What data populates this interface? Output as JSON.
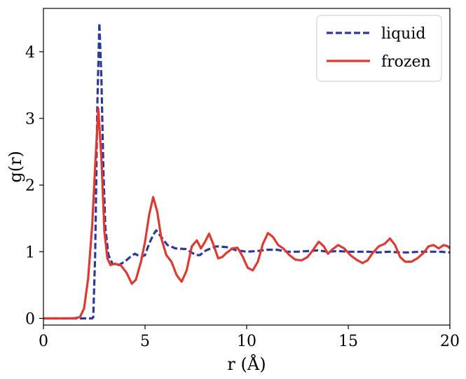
{
  "chart_data": {
    "type": "line",
    "xlabel": "r (Å)",
    "ylabel": "g(r)",
    "xlim": [
      0,
      20
    ],
    "ylim": [
      -0.1,
      4.65
    ],
    "xticks": [
      0,
      5,
      10,
      15,
      20
    ],
    "yticks": [
      0,
      1,
      2,
      3,
      4
    ],
    "grid": false,
    "legend_position": "top-right",
    "series": [
      {
        "name": "liquid",
        "color": "#2b3a9c",
        "style": "dashed",
        "points": [
          [
            0,
            0
          ],
          [
            2.4,
            0
          ],
          [
            2.45,
            0.02
          ],
          [
            2.55,
            1.0
          ],
          [
            2.65,
            3.2
          ],
          [
            2.75,
            4.43
          ],
          [
            2.85,
            3.6
          ],
          [
            2.95,
            2.2
          ],
          [
            3.05,
            1.35
          ],
          [
            3.2,
            0.95
          ],
          [
            3.4,
            0.82
          ],
          [
            3.7,
            0.8
          ],
          [
            4.0,
            0.85
          ],
          [
            4.3,
            0.93
          ],
          [
            4.5,
            0.97
          ],
          [
            4.8,
            0.92
          ],
          [
            5.0,
            0.95
          ],
          [
            5.2,
            1.12
          ],
          [
            5.4,
            1.25
          ],
          [
            5.55,
            1.32
          ],
          [
            5.8,
            1.22
          ],
          [
            6.1,
            1.1
          ],
          [
            6.5,
            1.05
          ],
          [
            7.0,
            1.04
          ],
          [
            7.5,
            0.95
          ],
          [
            7.7,
            0.95
          ],
          [
            8.0,
            1.02
          ],
          [
            8.5,
            1.08
          ],
          [
            9.0,
            1.07
          ],
          [
            9.5,
            1.02
          ],
          [
            10.0,
            1.0
          ],
          [
            10.5,
            1.01
          ],
          [
            11.0,
            1.03
          ],
          [
            11.5,
            1.03
          ],
          [
            12.0,
            1.0
          ],
          [
            12.5,
            1.0
          ],
          [
            13.0,
            1.01
          ],
          [
            13.5,
            1.02
          ],
          [
            14.0,
            1.0
          ],
          [
            14.5,
            1.01
          ],
          [
            15.0,
            1.0
          ],
          [
            15.5,
            1.0
          ],
          [
            16.0,
            1.0
          ],
          [
            16.5,
            0.99
          ],
          [
            17.0,
            1.0
          ],
          [
            17.5,
            0.99
          ],
          [
            18.0,
            0.99
          ],
          [
            18.5,
            1.0
          ],
          [
            19.0,
            1.0
          ],
          [
            19.5,
            1.0
          ],
          [
            20.0,
            0.99
          ]
        ]
      },
      {
        "name": "frozen",
        "color": "#dd3a31",
        "style": "solid",
        "points": [
          [
            0,
            0
          ],
          [
            1.5,
            0
          ],
          [
            1.8,
            0.02
          ],
          [
            2.0,
            0.15
          ],
          [
            2.2,
            0.6
          ],
          [
            2.4,
            1.4
          ],
          [
            2.55,
            2.3
          ],
          [
            2.7,
            3.15
          ],
          [
            2.85,
            2.4
          ],
          [
            3.0,
            1.3
          ],
          [
            3.15,
            0.9
          ],
          [
            3.3,
            0.8
          ],
          [
            3.5,
            0.82
          ],
          [
            3.8,
            0.8
          ],
          [
            4.1,
            0.68
          ],
          [
            4.35,
            0.52
          ],
          [
            4.55,
            0.58
          ],
          [
            4.8,
            0.85
          ],
          [
            5.0,
            1.15
          ],
          [
            5.2,
            1.55
          ],
          [
            5.4,
            1.82
          ],
          [
            5.6,
            1.6
          ],
          [
            5.8,
            1.2
          ],
          [
            6.05,
            0.95
          ],
          [
            6.3,
            0.85
          ],
          [
            6.55,
            0.65
          ],
          [
            6.8,
            0.55
          ],
          [
            7.05,
            0.72
          ],
          [
            7.3,
            1.08
          ],
          [
            7.55,
            1.17
          ],
          [
            7.75,
            1.05
          ],
          [
            7.95,
            1.15
          ],
          [
            8.15,
            1.27
          ],
          [
            8.35,
            1.12
          ],
          [
            8.6,
            0.9
          ],
          [
            8.8,
            0.92
          ],
          [
            9.0,
            0.98
          ],
          [
            9.3,
            1.05
          ],
          [
            9.55,
            1.06
          ],
          [
            9.8,
            0.93
          ],
          [
            10.05,
            0.76
          ],
          [
            10.3,
            0.72
          ],
          [
            10.55,
            0.85
          ],
          [
            10.8,
            1.12
          ],
          [
            11.05,
            1.28
          ],
          [
            11.3,
            1.22
          ],
          [
            11.55,
            1.1
          ],
          [
            11.8,
            1.05
          ],
          [
            12.1,
            0.95
          ],
          [
            12.4,
            0.88
          ],
          [
            12.7,
            0.87
          ],
          [
            13.0,
            0.92
          ],
          [
            13.25,
            1.02
          ],
          [
            13.55,
            1.15
          ],
          [
            13.8,
            1.08
          ],
          [
            14.0,
            0.97
          ],
          [
            14.2,
            1.03
          ],
          [
            14.5,
            1.1
          ],
          [
            14.8,
            1.05
          ],
          [
            15.1,
            0.95
          ],
          [
            15.4,
            0.88
          ],
          [
            15.7,
            0.83
          ],
          [
            15.95,
            0.87
          ],
          [
            16.2,
            0.98
          ],
          [
            16.5,
            1.08
          ],
          [
            16.8,
            1.12
          ],
          [
            17.05,
            1.2
          ],
          [
            17.3,
            1.1
          ],
          [
            17.55,
            0.92
          ],
          [
            17.8,
            0.85
          ],
          [
            18.1,
            0.85
          ],
          [
            18.4,
            0.9
          ],
          [
            18.7,
            0.98
          ],
          [
            18.95,
            1.08
          ],
          [
            19.2,
            1.1
          ],
          [
            19.45,
            1.05
          ],
          [
            19.7,
            1.1
          ],
          [
            19.9,
            1.08
          ],
          [
            20.0,
            1.05
          ]
        ]
      }
    ]
  }
}
